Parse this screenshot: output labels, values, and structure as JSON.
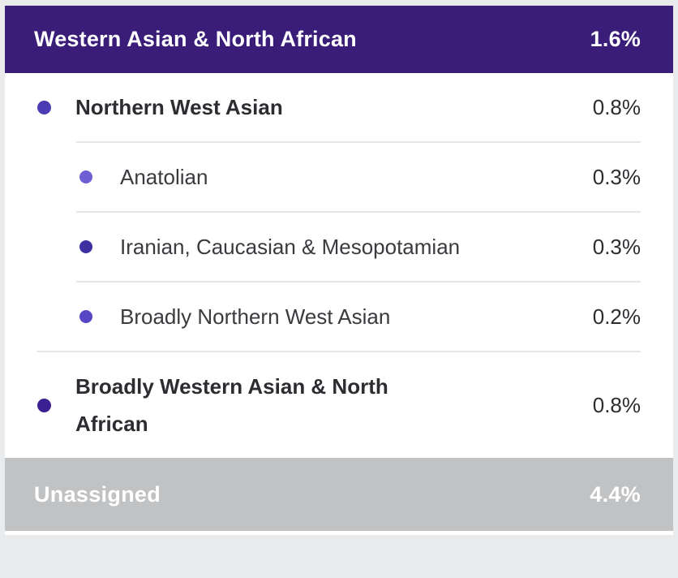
{
  "section": {
    "title": "Western Asian & North African",
    "percent": "1.6%",
    "rows": [
      {
        "label": "Northern West Asian",
        "percent": "0.8%",
        "level": 1,
        "dot_color": "#4c3cb3"
      },
      {
        "label": "Anatolian",
        "percent": "0.3%",
        "level": 2,
        "dot_color": "#6e5fd4"
      },
      {
        "label": "Iranian, Caucasian & Mesopotamian",
        "percent": "0.3%",
        "level": 2,
        "dot_color": "#3f30a2"
      },
      {
        "label": "Broadly Northern West Asian",
        "percent": "0.2%",
        "level": 2,
        "dot_color": "#5747c4"
      },
      {
        "label": "Broadly Western Asian & North African",
        "percent": "0.8%",
        "level": 1,
        "dot_color": "#3b2092"
      }
    ]
  },
  "footer": {
    "label": "Unassigned",
    "percent": "4.4%"
  },
  "colors": {
    "page_bg": "#e9ebec",
    "card_bg": "#ffffff",
    "header_bg": "#3a1d79",
    "header_text": "#ffffff",
    "divider": "#e5e6e7",
    "unassigned_bg": "#c0c2c4",
    "unassigned_text": "#ffffff",
    "label_primary": "#2c2c31",
    "label_secondary": "#3a3a3f"
  }
}
